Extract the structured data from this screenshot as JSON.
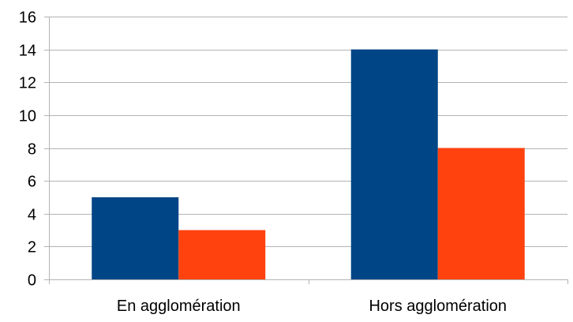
{
  "chart_data": {
    "type": "bar",
    "categories": [
      "En agglomération",
      "Hors agglomération"
    ],
    "series": [
      {
        "values": [
          5,
          14
        ],
        "color": "#004586"
      },
      {
        "values": [
          3,
          8
        ],
        "color": "#ff420e"
      }
    ],
    "y_ticks": [
      "0",
      "2",
      "4",
      "6",
      "8",
      "10",
      "12",
      "14",
      "16"
    ],
    "ylim": [
      0,
      16
    ],
    "grid": true,
    "legend": "none"
  }
}
